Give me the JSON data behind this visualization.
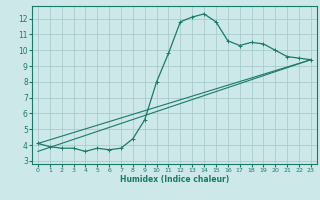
{
  "title": "",
  "xlabel": "Humidex (Indice chaleur)",
  "bg_color": "#cce8e8",
  "grid_color": "#aacccc",
  "line_color": "#1a7a6a",
  "xlim": [
    -0.5,
    23.5
  ],
  "ylim": [
    2.8,
    12.8
  ],
  "yticks": [
    3,
    4,
    5,
    6,
    7,
    8,
    9,
    10,
    11,
    12
  ],
  "xticks": [
    0,
    1,
    2,
    3,
    4,
    5,
    6,
    7,
    8,
    9,
    10,
    11,
    12,
    13,
    14,
    15,
    16,
    17,
    18,
    19,
    20,
    21,
    22,
    23
  ],
  "line1_x": [
    0,
    1,
    2,
    3,
    4,
    5,
    6,
    7,
    8,
    9,
    10,
    11,
    12,
    13,
    14,
    15,
    16,
    17,
    18,
    19,
    20,
    21,
    22,
    23
  ],
  "line1_y": [
    4.1,
    3.9,
    3.8,
    3.8,
    3.6,
    3.8,
    3.7,
    3.8,
    4.4,
    5.6,
    8.0,
    9.8,
    11.8,
    12.1,
    12.3,
    11.8,
    10.6,
    10.3,
    10.5,
    10.4,
    10.0,
    9.6,
    9.5,
    9.4
  ],
  "line2_x": [
    0,
    23
  ],
  "line2_y": [
    4.1,
    9.4
  ],
  "line3_x": [
    0,
    23
  ],
  "line3_y": [
    3.6,
    9.4
  ]
}
